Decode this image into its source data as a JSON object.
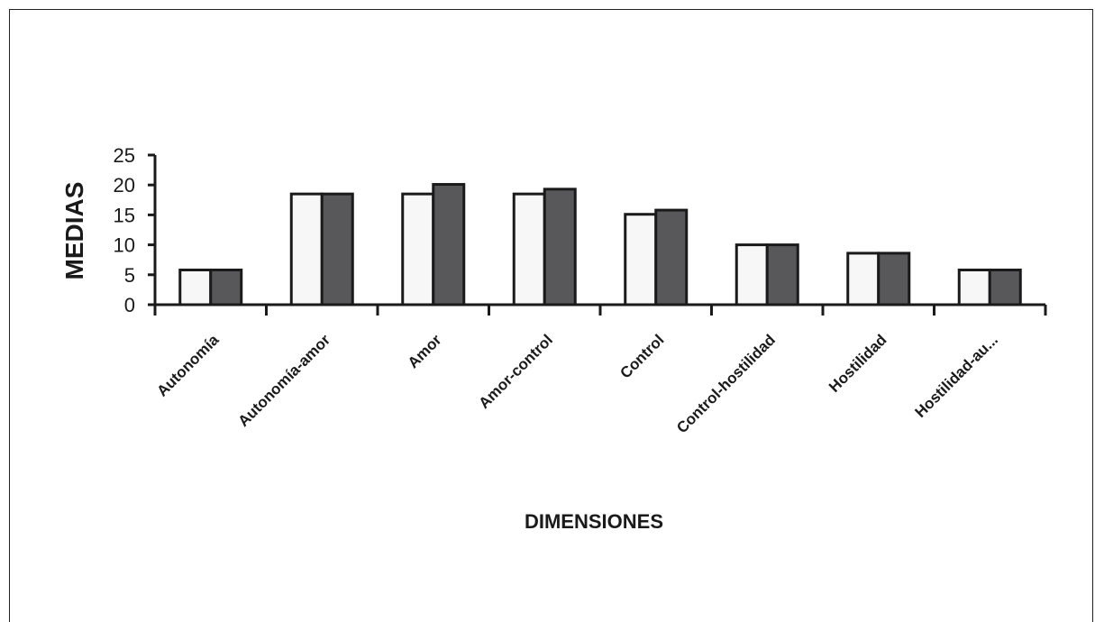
{
  "chart_data": {
    "type": "bar",
    "title": "",
    "xlabel": "DIMENSIONES",
    "ylabel": "MEDIAS",
    "ylim": [
      0,
      25
    ],
    "yticks": [
      "0",
      "5",
      "10",
      "15",
      "20",
      "25"
    ],
    "categories": [
      "Autonomía",
      "Autonomía-amor",
      "Amor",
      "Amor-control",
      "Control",
      "Control-hostilidad",
      "Hostilidad",
      "Hostilidad-au..."
    ],
    "series": [
      {
        "values": [
          5.8,
          18.5,
          18.5,
          18.5,
          15.1,
          10.0,
          8.6,
          5.8
        ]
      },
      {
        "values": [
          5.8,
          18.5,
          20.1,
          19.3,
          15.8,
          10.0,
          8.6,
          5.8
        ]
      }
    ],
    "colors": [
      "#f7f7f7",
      "#58585b"
    ],
    "legend": "none",
    "grid": false
  }
}
